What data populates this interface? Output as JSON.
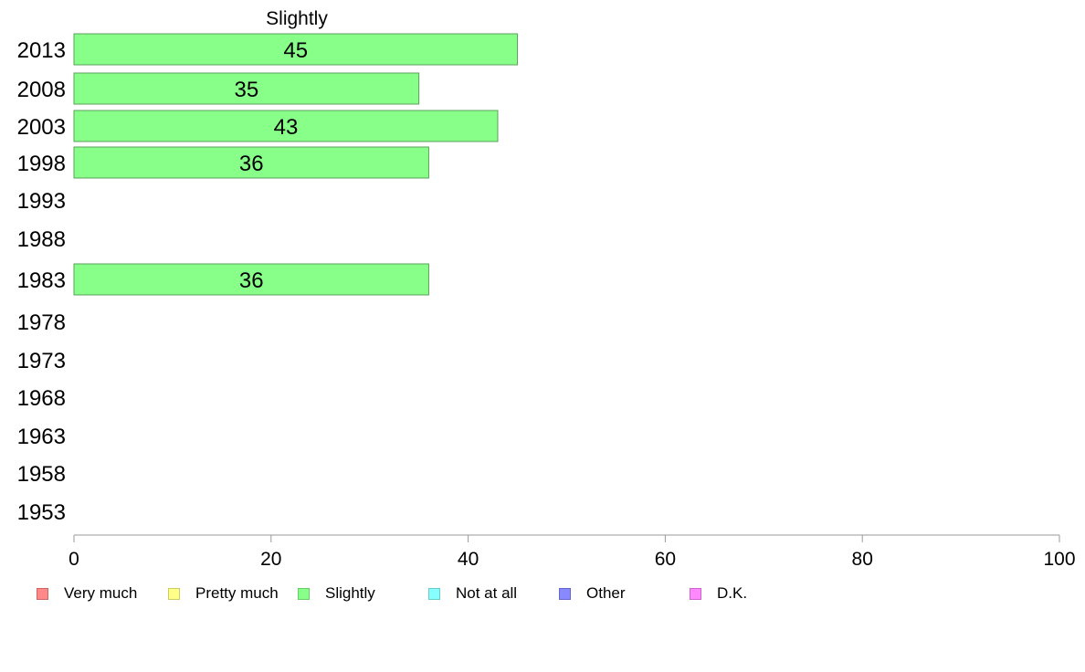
{
  "chart_data": {
    "type": "bar",
    "orientation": "horizontal",
    "title": "Slightly",
    "categories": [
      "2013",
      "2008",
      "2003",
      "1998",
      "1993",
      "1988",
      "1983",
      "1978",
      "1973",
      "1968",
      "1963",
      "1958",
      "1953"
    ],
    "series": [
      {
        "name": "Slightly",
        "color": "#88ff88",
        "values": [
          45,
          35,
          43,
          36,
          null,
          null,
          36,
          null,
          null,
          null,
          null,
          null,
          null
        ],
        "labels": [
          "45",
          "35",
          "43",
          "36",
          "",
          "",
          "36",
          "",
          "",
          "",
          "",
          "",
          ""
        ]
      }
    ],
    "xlim": [
      0,
      100
    ],
    "xticks": [
      "0",
      "20",
      "40",
      "60",
      "80",
      "100"
    ],
    "grid": false,
    "legend_position": "bottom",
    "legend": [
      {
        "label": "Very much",
        "color": "#ff8888",
        "border": "#cc6666"
      },
      {
        "label": "Pretty much",
        "color": "#ffff88",
        "border": "#cccc66"
      },
      {
        "label": "Slightly",
        "color": "#88ff88",
        "border": "#66cc66"
      },
      {
        "label": "Not at all",
        "color": "#88ffff",
        "border": "#66cccc"
      },
      {
        "label": "Other",
        "color": "#8888ff",
        "border": "#6666cc"
      },
      {
        "label": "D.K.",
        "color": "#ff88ff",
        "border": "#cc66cc"
      }
    ]
  }
}
